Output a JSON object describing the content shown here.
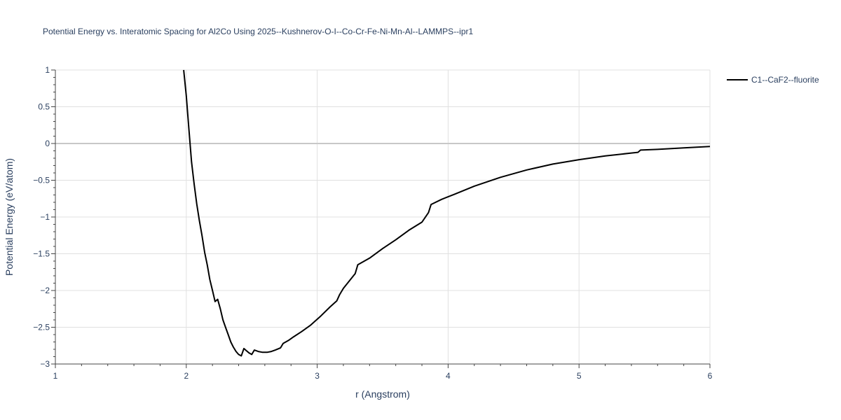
{
  "chart_data": {
    "type": "line",
    "title": "Potential Energy vs. Interatomic Spacing for Al2Co Using 2025--Kushnerov-O-I--Co-Cr-Fe-Ni-Mn-Al--LAMMPS--ipr1",
    "xlabel": "r (Angstrom)",
    "ylabel": "Potential Energy (eV/atom)",
    "xlim": [
      1,
      6
    ],
    "ylim": [
      -3,
      1
    ],
    "x_ticks": [
      "1",
      "2",
      "3",
      "4",
      "5",
      "6"
    ],
    "y_ticks": [
      "1",
      "0.5",
      "0",
      "−0.5",
      "−1",
      "−1.5",
      "−2",
      "−2.5",
      "−3"
    ],
    "grid": true,
    "legend_position": "top-right",
    "series": [
      {
        "name": "C1--CaF2--fluorite",
        "color": "#000000",
        "x": [
          1.98,
          2.0,
          2.02,
          2.04,
          2.06,
          2.08,
          2.1,
          2.12,
          2.14,
          2.16,
          2.18,
          2.2,
          2.22,
          2.24,
          2.26,
          2.28,
          2.3,
          2.32,
          2.34,
          2.36,
          2.38,
          2.4,
          2.42,
          2.44,
          2.46,
          2.48,
          2.5,
          2.52,
          2.55,
          2.58,
          2.62,
          2.65,
          2.68,
          2.72,
          2.74,
          2.78,
          2.82,
          2.88,
          2.95,
          3.02,
          3.1,
          3.15,
          3.17,
          3.2,
          3.25,
          3.29,
          3.31,
          3.4,
          3.5,
          3.6,
          3.7,
          3.8,
          3.85,
          3.87,
          3.95,
          4.05,
          4.2,
          4.4,
          4.6,
          4.8,
          5.0,
          5.2,
          5.4,
          5.45,
          5.47,
          5.6,
          5.8,
          6.0
        ],
        "values": [
          1.0,
          0.65,
          0.2,
          -0.25,
          -0.55,
          -0.82,
          -1.05,
          -1.25,
          -1.48,
          -1.65,
          -1.85,
          -2.0,
          -2.15,
          -2.12,
          -2.25,
          -2.4,
          -2.5,
          -2.6,
          -2.7,
          -2.77,
          -2.83,
          -2.87,
          -2.89,
          -2.79,
          -2.82,
          -2.85,
          -2.87,
          -2.81,
          -2.83,
          -2.84,
          -2.84,
          -2.83,
          -2.81,
          -2.78,
          -2.72,
          -2.68,
          -2.63,
          -2.56,
          -2.47,
          -2.36,
          -2.22,
          -2.14,
          -2.06,
          -1.97,
          -1.86,
          -1.77,
          -1.65,
          -1.56,
          -1.43,
          -1.31,
          -1.18,
          -1.07,
          -0.94,
          -0.83,
          -0.76,
          -0.69,
          -0.58,
          -0.46,
          -0.36,
          -0.28,
          -0.22,
          -0.17,
          -0.13,
          -0.12,
          -0.09,
          -0.08,
          -0.06,
          -0.04
        ]
      }
    ]
  }
}
